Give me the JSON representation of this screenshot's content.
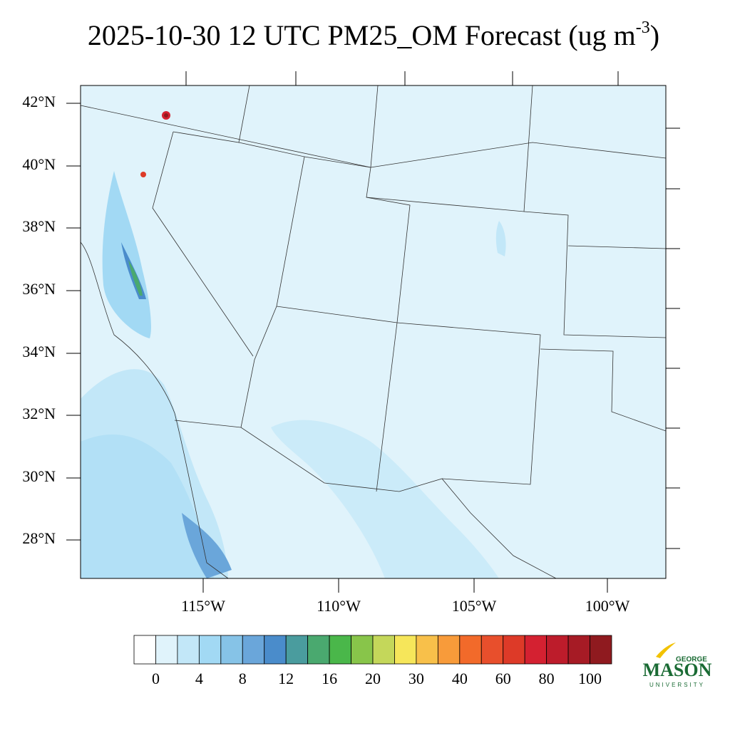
{
  "title": {
    "main": "2025-10-30 12 UTC PM25_OM Forecast (ug m",
    "superscript": "-3",
    "end": ")"
  },
  "map": {
    "lat_labels": [
      "42°N",
      "40°N",
      "38°N",
      "36°N",
      "34°N",
      "32°N",
      "30°N",
      "28°N"
    ],
    "lon_labels": [
      "115°W",
      "110°W",
      "105°W",
      "100°W"
    ]
  },
  "colorbar": {
    "colors": [
      "#ffffff",
      "#e0f3fb",
      "#c2e7f8",
      "#a2d9f4",
      "#86c3e7",
      "#6aa6da",
      "#4a8ccb",
      "#4a9c9e",
      "#4aa96f",
      "#4ab74a",
      "#88c54a",
      "#c4d75a",
      "#f6e65a",
      "#f8c04a",
      "#f89b3a",
      "#f26a2a",
      "#e84f2c",
      "#dd3a28",
      "#d42131",
      "#bd1c2b",
      "#a61b25",
      "#8f1a1f"
    ],
    "labels": [
      "0",
      "4",
      "8",
      "12",
      "16",
      "20",
      "30",
      "40",
      "60",
      "80",
      "100"
    ]
  },
  "logo": {
    "top": "GEORGE",
    "main": "MASON",
    "bottom": "UNIVERSITY"
  }
}
